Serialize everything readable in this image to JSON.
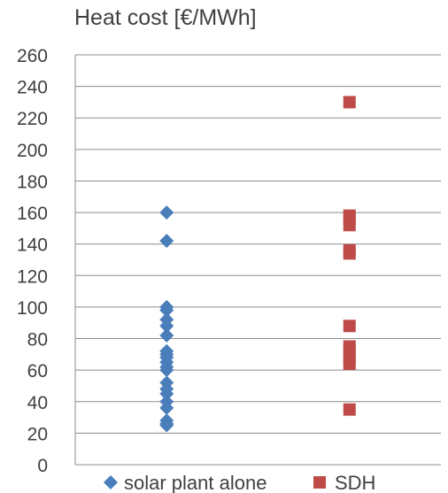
{
  "chart_data": {
    "type": "scatter",
    "title": "Heat cost [€/MWh]",
    "xlabel": "",
    "ylabel": "",
    "ylim": [
      0,
      260
    ],
    "yticks": [
      "0",
      "20",
      "40",
      "60",
      "80",
      "100",
      "120",
      "140",
      "160",
      "180",
      "200",
      "220",
      "240",
      "260"
    ],
    "grid": true,
    "legend_position": "bottom",
    "series": [
      {
        "name": "solar plant alone",
        "marker": "diamond",
        "color": "#4a7ebb",
        "category": 1,
        "values": [
          160,
          142,
          100,
          98,
          92,
          88,
          82,
          72,
          70,
          68,
          65,
          62,
          60,
          52,
          48,
          45,
          40,
          36,
          28,
          26,
          25
        ]
      },
      {
        "name": "SDH",
        "marker": "square",
        "color": "#be4b48",
        "category": 2,
        "values": [
          230,
          158,
          156,
          152,
          136,
          134,
          88,
          75,
          72,
          67,
          64,
          35
        ]
      }
    ]
  }
}
